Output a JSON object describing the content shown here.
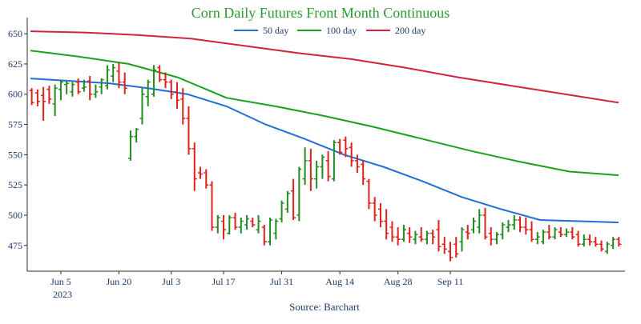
{
  "chart_data": {
    "type": "ohlc",
    "title": "Corn Daily Futures Front Month Continuous",
    "source": "Source: Barchart",
    "year_label": "2023",
    "xlabel": "",
    "ylabel": "",
    "ylim": [
      455,
      662
    ],
    "yticks": [
      475,
      500,
      525,
      550,
      575,
      600,
      625,
      650
    ],
    "x_tick_labels": [
      "Jun 5",
      "Jun 20",
      "Jul 3",
      "Jul 17",
      "Jul 31",
      "Aug 14",
      "Aug 28",
      "Sep 11"
    ],
    "x_tick_index": [
      5,
      15,
      24,
      33,
      43,
      53,
      63,
      72
    ],
    "grid": false,
    "legend_position": "top-center",
    "colors": {
      "up": "#228b22",
      "down": "#e0201c",
      "axis": "#2b2b2b",
      "text": "#1b3a6b"
    },
    "series": [
      {
        "name": "50 day",
        "color": "#1f6fd6",
        "values": [
          613,
          611,
          609,
          605,
          600,
          590,
          575,
          563,
          550,
          540,
          528,
          515,
          505,
          496,
          495,
          494
        ]
      },
      {
        "name": "100 day",
        "color": "#1aa21a",
        "values": [
          636,
          631,
          625,
          614,
          597,
          590,
          582,
          573,
          563,
          553,
          544,
          536,
          533
        ]
      },
      {
        "name": "200 day",
        "color": "#d1233f",
        "values": [
          652,
          651,
          649,
          646,
          640,
          634,
          629,
          622,
          614,
          607,
          600,
          593
        ]
      }
    ],
    "bars": [
      {
        "o": 603,
        "h": 605,
        "l": 591,
        "c": 593
      },
      {
        "o": 601,
        "h": 604,
        "l": 590,
        "c": 594
      },
      {
        "o": 599,
        "h": 606,
        "l": 578,
        "c": 594
      },
      {
        "o": 604,
        "h": 607,
        "l": 592,
        "c": 596
      },
      {
        "o": 592,
        "h": 608,
        "l": 582,
        "c": 605
      },
      {
        "o": 604,
        "h": 612,
        "l": 595,
        "c": 610
      },
      {
        "o": 608,
        "h": 611,
        "l": 600,
        "c": 609
      },
      {
        "o": 602,
        "h": 610,
        "l": 598,
        "c": 608
      },
      {
        "o": 610,
        "h": 613,
        "l": 600,
        "c": 602
      },
      {
        "o": 605,
        "h": 612,
        "l": 602,
        "c": 606
      },
      {
        "o": 611,
        "h": 615,
        "l": 595,
        "c": 600
      },
      {
        "o": 600,
        "h": 608,
        "l": 597,
        "c": 602
      },
      {
        "o": 606,
        "h": 613,
        "l": 600,
        "c": 612
      },
      {
        "o": 607,
        "h": 624,
        "l": 604,
        "c": 620
      },
      {
        "o": 615,
        "h": 625,
        "l": 610,
        "c": 622
      },
      {
        "o": 619,
        "h": 626,
        "l": 605,
        "c": 610
      },
      {
        "o": 610,
        "h": 618,
        "l": 600,
        "c": 605
      },
      {
        "o": 547,
        "h": 570,
        "l": 545,
        "c": 565
      },
      {
        "o": 565,
        "h": 572,
        "l": 560,
        "c": 571
      },
      {
        "o": 580,
        "h": 605,
        "l": 575,
        "c": 600
      },
      {
        "o": 598,
        "h": 612,
        "l": 590,
        "c": 610
      },
      {
        "o": 600,
        "h": 624,
        "l": 598,
        "c": 620
      },
      {
        "o": 622,
        "h": 624,
        "l": 610,
        "c": 612
      },
      {
        "o": 612,
        "h": 618,
        "l": 605,
        "c": 610
      },
      {
        "o": 610,
        "h": 612,
        "l": 596,
        "c": 600
      },
      {
        "o": 602,
        "h": 610,
        "l": 588,
        "c": 595
      },
      {
        "o": 596,
        "h": 605,
        "l": 575,
        "c": 580
      },
      {
        "o": 580,
        "h": 590,
        "l": 550,
        "c": 555
      },
      {
        "o": 555,
        "h": 560,
        "l": 520,
        "c": 530
      },
      {
        "o": 535,
        "h": 540,
        "l": 530,
        "c": 534
      },
      {
        "o": 535,
        "h": 538,
        "l": 522,
        "c": 525
      },
      {
        "o": 525,
        "h": 528,
        "l": 487,
        "c": 490
      },
      {
        "o": 490,
        "h": 500,
        "l": 485,
        "c": 498
      },
      {
        "o": 495,
        "h": 500,
        "l": 480,
        "c": 488
      },
      {
        "o": 485,
        "h": 500,
        "l": 484,
        "c": 498
      },
      {
        "o": 498,
        "h": 502,
        "l": 488,
        "c": 490
      },
      {
        "o": 490,
        "h": 498,
        "l": 485,
        "c": 495
      },
      {
        "o": 492,
        "h": 500,
        "l": 488,
        "c": 497
      },
      {
        "o": 495,
        "h": 498,
        "l": 490,
        "c": 492
      },
      {
        "o": 488,
        "h": 500,
        "l": 485,
        "c": 495
      },
      {
        "o": 490,
        "h": 492,
        "l": 475,
        "c": 478
      },
      {
        "o": 478,
        "h": 498,
        "l": 475,
        "c": 496
      },
      {
        "o": 485,
        "h": 497,
        "l": 480,
        "c": 495
      },
      {
        "o": 497,
        "h": 512,
        "l": 494,
        "c": 510
      },
      {
        "o": 505,
        "h": 520,
        "l": 502,
        "c": 518
      },
      {
        "o": 520,
        "h": 530,
        "l": 496,
        "c": 498
      },
      {
        "o": 500,
        "h": 540,
        "l": 495,
        "c": 538
      },
      {
        "o": 530,
        "h": 556,
        "l": 525,
        "c": 545
      },
      {
        "o": 545,
        "h": 555,
        "l": 520,
        "c": 530
      },
      {
        "o": 530,
        "h": 545,
        "l": 522,
        "c": 540
      },
      {
        "o": 540,
        "h": 550,
        "l": 530,
        "c": 548
      },
      {
        "o": 545,
        "h": 553,
        "l": 528,
        "c": 532
      },
      {
        "o": 530,
        "h": 562,
        "l": 528,
        "c": 560
      },
      {
        "o": 560,
        "h": 563,
        "l": 550,
        "c": 552
      },
      {
        "o": 562,
        "h": 565,
        "l": 548,
        "c": 555
      },
      {
        "o": 556,
        "h": 560,
        "l": 540,
        "c": 545
      },
      {
        "o": 545,
        "h": 550,
        "l": 535,
        "c": 540
      },
      {
        "o": 542,
        "h": 545,
        "l": 525,
        "c": 530
      },
      {
        "o": 528,
        "h": 530,
        "l": 505,
        "c": 510
      },
      {
        "o": 510,
        "h": 515,
        "l": 495,
        "c": 500
      },
      {
        "o": 505,
        "h": 510,
        "l": 490,
        "c": 495
      },
      {
        "o": 495,
        "h": 505,
        "l": 480,
        "c": 485
      },
      {
        "o": 490,
        "h": 495,
        "l": 478,
        "c": 482
      },
      {
        "o": 482,
        "h": 490,
        "l": 475,
        "c": 480
      },
      {
        "o": 480,
        "h": 492,
        "l": 478,
        "c": 488
      },
      {
        "o": 485,
        "h": 490,
        "l": 477,
        "c": 482
      },
      {
        "o": 480,
        "h": 487,
        "l": 476,
        "c": 484
      },
      {
        "o": 482,
        "h": 490,
        "l": 478,
        "c": 480
      },
      {
        "o": 480,
        "h": 487,
        "l": 476,
        "c": 485
      },
      {
        "o": 485,
        "h": 488,
        "l": 476,
        "c": 482
      },
      {
        "o": 488,
        "h": 496,
        "l": 470,
        "c": 474
      },
      {
        "o": 476,
        "h": 482,
        "l": 468,
        "c": 472
      },
      {
        "o": 470,
        "h": 478,
        "l": 462,
        "c": 465
      },
      {
        "o": 476,
        "h": 482,
        "l": 465,
        "c": 468
      },
      {
        "o": 478,
        "h": 490,
        "l": 470,
        "c": 488
      },
      {
        "o": 486,
        "h": 492,
        "l": 480,
        "c": 485
      },
      {
        "o": 488,
        "h": 498,
        "l": 485,
        "c": 495
      },
      {
        "o": 490,
        "h": 505,
        "l": 485,
        "c": 500
      },
      {
        "o": 500,
        "h": 506,
        "l": 480,
        "c": 482
      },
      {
        "o": 485,
        "h": 490,
        "l": 475,
        "c": 480
      },
      {
        "o": 480,
        "h": 486,
        "l": 476,
        "c": 484
      },
      {
        "o": 484,
        "h": 494,
        "l": 480,
        "c": 492
      },
      {
        "o": 490,
        "h": 496,
        "l": 486,
        "c": 492
      },
      {
        "o": 492,
        "h": 500,
        "l": 488,
        "c": 496
      },
      {
        "o": 496,
        "h": 499,
        "l": 486,
        "c": 490
      },
      {
        "o": 490,
        "h": 498,
        "l": 484,
        "c": 488
      },
      {
        "o": 488,
        "h": 495,
        "l": 478,
        "c": 480
      },
      {
        "o": 480,
        "h": 486,
        "l": 476,
        "c": 482
      },
      {
        "o": 478,
        "h": 488,
        "l": 476,
        "c": 486
      },
      {
        "o": 486,
        "h": 492,
        "l": 480,
        "c": 482
      },
      {
        "o": 482,
        "h": 490,
        "l": 480,
        "c": 488
      },
      {
        "o": 486,
        "h": 490,
        "l": 482,
        "c": 484
      },
      {
        "o": 484,
        "h": 489,
        "l": 482,
        "c": 486
      },
      {
        "o": 486,
        "h": 490,
        "l": 480,
        "c": 482
      },
      {
        "o": 484,
        "h": 487,
        "l": 474,
        "c": 476
      },
      {
        "o": 476,
        "h": 484,
        "l": 474,
        "c": 480
      },
      {
        "o": 480,
        "h": 484,
        "l": 475,
        "c": 478
      },
      {
        "o": 478,
        "h": 482,
        "l": 474,
        "c": 476
      },
      {
        "o": 476,
        "h": 479,
        "l": 470,
        "c": 472
      },
      {
        "o": 470,
        "h": 478,
        "l": 468,
        "c": 476
      },
      {
        "o": 475,
        "h": 482,
        "l": 472,
        "c": 480
      },
      {
        "o": 480,
        "h": 482,
        "l": 474,
        "c": 476
      }
    ]
  }
}
